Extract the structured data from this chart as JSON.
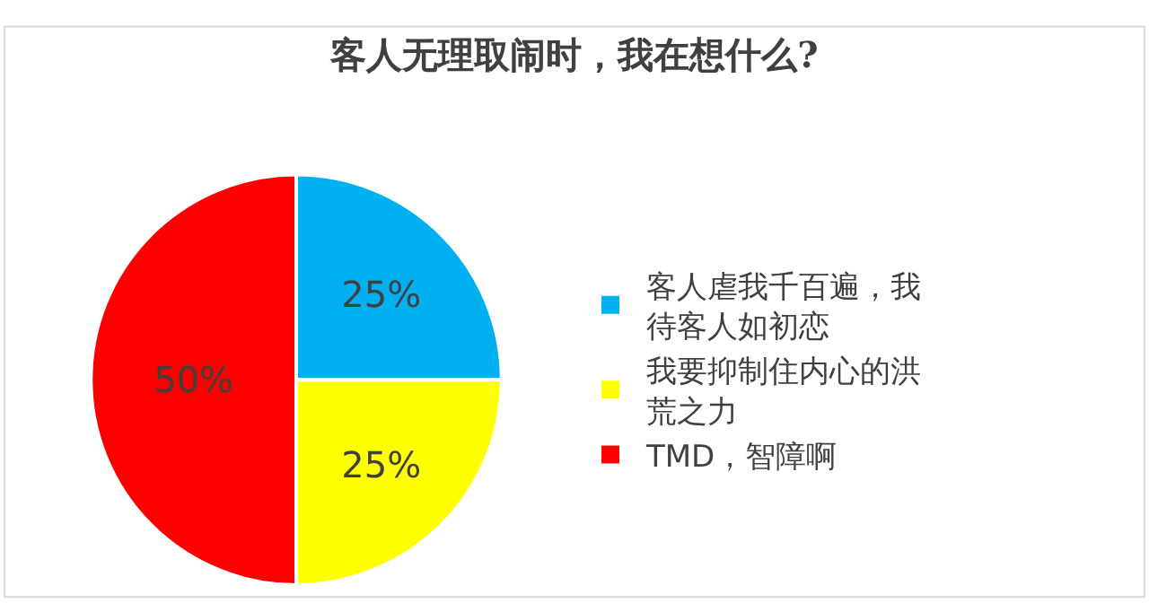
{
  "chart_data": {
    "type": "pie",
    "title": "客人无理取闹时，我在想什么?",
    "categories": [
      "客人虐我千百遍，我待客人如初恋",
      "我要抑制住内心的洪荒之力",
      "TMD，智障啊"
    ],
    "values": [
      25,
      25,
      50
    ],
    "colors": [
      "#00b0f0",
      "#ffff00",
      "#ff0000"
    ],
    "value_labels": [
      "25%",
      "25%",
      "50%"
    ],
    "legend": "right"
  }
}
